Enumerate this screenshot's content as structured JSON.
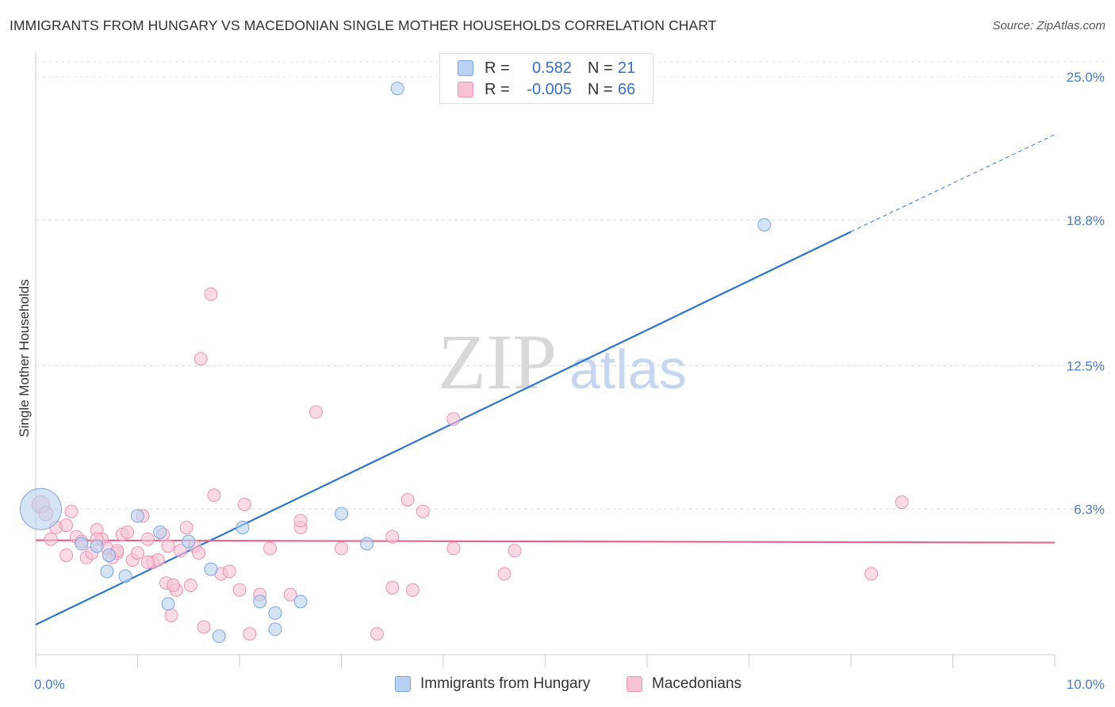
{
  "title": "IMMIGRANTS FROM HUNGARY VS MACEDONIAN SINGLE MOTHER HOUSEHOLDS CORRELATION CHART",
  "source": "Source: ZipAtlas.com",
  "watermark": {
    "zip": "ZIP",
    "atlas": "atlas"
  },
  "colors": {
    "blue_fill": "#b9d1f2",
    "blue_stroke": "#7aa6df",
    "blue_line": "#2f74d0",
    "pink_fill": "#f7c3d3",
    "pink_stroke": "#ec93b0",
    "pink_line": "#e36690",
    "tick_label": "#4a7cc7",
    "grid": "#dddddd"
  },
  "legend": {
    "rows": [
      {
        "r_label": "R =",
        "r_value": "0.582",
        "n_label": "N =",
        "n_value": "21"
      },
      {
        "r_label": "R =",
        "r_value": "-0.005",
        "n_label": "N =",
        "n_value": "66"
      }
    ]
  },
  "bottom_legend": {
    "series1": "Immigrants from Hungary",
    "series2": "Macedonians"
  },
  "chart_data": {
    "type": "scatter",
    "title": "IMMIGRANTS FROM HUNGARY VS MACEDONIAN SINGLE MOTHER HOUSEHOLDS CORRELATION CHART",
    "xlabel": "",
    "ylabel": "Single Mother Households",
    "xlim": [
      0,
      10
    ],
    "ylim": [
      0,
      25.0
    ],
    "x_tick_labels": [
      "0.0%",
      "10.0%"
    ],
    "y_ticks": [
      6.3,
      12.5,
      18.8,
      25.0
    ],
    "y_tick_labels": [
      "6.3%",
      "12.5%",
      "18.8%",
      "25.0%"
    ],
    "grid": true,
    "series": [
      {
        "name": "Immigrants from Hungary",
        "R": 0.582,
        "N": 21,
        "trend": {
          "x0": 0,
          "y0": 1.3,
          "x1": 8.0,
          "y1": 18.3,
          "dash_to_x": 10.0,
          "dash_to_y": 22.5
        },
        "points": [
          [
            0.05,
            6.3,
            26
          ],
          [
            0.45,
            4.8,
            8
          ],
          [
            0.6,
            4.7,
            8
          ],
          [
            0.7,
            3.6,
            8
          ],
          [
            0.72,
            4.3,
            8
          ],
          [
            0.88,
            3.4,
            8
          ],
          [
            1.0,
            6.0,
            8
          ],
          [
            1.22,
            5.3,
            8
          ],
          [
            1.3,
            2.2,
            8
          ],
          [
            1.5,
            4.9,
            8
          ],
          [
            1.72,
            3.7,
            8
          ],
          [
            1.8,
            0.8,
            8
          ],
          [
            2.03,
            5.5,
            8
          ],
          [
            2.2,
            2.3,
            8
          ],
          [
            2.35,
            1.8,
            8
          ],
          [
            2.35,
            1.1,
            8
          ],
          [
            2.6,
            2.3,
            8
          ],
          [
            3.0,
            6.1,
            8
          ],
          [
            3.25,
            4.8,
            8
          ],
          [
            3.55,
            24.5,
            8
          ],
          [
            7.15,
            18.6,
            8
          ]
        ]
      },
      {
        "name": "Macedonians",
        "R": -0.005,
        "N": 66,
        "trend": {
          "x0": 0,
          "y0": 4.95,
          "x1": 10.0,
          "y1": 4.85
        },
        "points": [
          [
            0.05,
            6.5,
            11
          ],
          [
            0.1,
            6.1,
            9
          ],
          [
            0.15,
            5.0,
            8
          ],
          [
            0.2,
            5.5,
            8
          ],
          [
            0.3,
            4.3,
            8
          ],
          [
            0.35,
            6.2,
            8
          ],
          [
            0.4,
            5.1,
            8
          ],
          [
            0.45,
            4.9,
            8
          ],
          [
            0.5,
            4.2,
            8
          ],
          [
            0.55,
            4.4,
            8
          ],
          [
            0.6,
            5.4,
            8
          ],
          [
            0.65,
            5.0,
            8
          ],
          [
            0.7,
            4.6,
            8
          ],
          [
            0.75,
            4.2,
            8
          ],
          [
            0.8,
            4.4,
            8
          ],
          [
            0.85,
            5.2,
            8
          ],
          [
            0.9,
            5.3,
            8
          ],
          [
            0.95,
            4.1,
            8
          ],
          [
            1.0,
            4.4,
            8
          ],
          [
            1.05,
            6.0,
            8
          ],
          [
            1.1,
            5.0,
            8
          ],
          [
            1.15,
            4.0,
            8
          ],
          [
            1.2,
            4.1,
            8
          ],
          [
            1.25,
            5.2,
            8
          ],
          [
            1.28,
            3.1,
            8
          ],
          [
            1.3,
            4.7,
            8
          ],
          [
            1.33,
            1.7,
            8
          ],
          [
            1.38,
            2.8,
            8
          ],
          [
            1.42,
            4.5,
            8
          ],
          [
            1.48,
            5.5,
            8
          ],
          [
            1.52,
            3.0,
            8
          ],
          [
            1.56,
            4.7,
            8
          ],
          [
            1.6,
            4.4,
            8
          ],
          [
            1.62,
            12.8,
            8
          ],
          [
            1.65,
            1.2,
            8
          ],
          [
            1.72,
            15.6,
            8
          ],
          [
            1.75,
            6.9,
            8
          ],
          [
            1.82,
            3.5,
            8
          ],
          [
            1.9,
            3.6,
            8
          ],
          [
            2.0,
            2.8,
            8
          ],
          [
            2.05,
            6.5,
            8
          ],
          [
            2.1,
            0.9,
            8
          ],
          [
            2.2,
            2.6,
            8
          ],
          [
            2.3,
            4.6,
            8
          ],
          [
            2.5,
            2.6,
            8
          ],
          [
            2.6,
            5.5,
            8
          ],
          [
            2.6,
            5.8,
            8
          ],
          [
            2.75,
            10.5,
            8
          ],
          [
            3.0,
            4.6,
            8
          ],
          [
            3.35,
            0.9,
            8
          ],
          [
            3.5,
            2.9,
            8
          ],
          [
            3.5,
            5.1,
            8
          ],
          [
            3.65,
            6.7,
            8
          ],
          [
            3.7,
            2.8,
            8
          ],
          [
            3.8,
            6.2,
            8
          ],
          [
            4.1,
            4.6,
            8
          ],
          [
            4.1,
            10.2,
            8
          ],
          [
            4.6,
            3.5,
            8
          ],
          [
            4.7,
            4.5,
            8
          ],
          [
            8.2,
            3.5,
            8
          ],
          [
            8.5,
            6.6,
            8
          ],
          [
            0.3,
            5.6,
            8
          ],
          [
            1.1,
            4.0,
            8
          ],
          [
            0.6,
            5.0,
            8
          ],
          [
            0.8,
            4.5,
            8
          ],
          [
            1.35,
            3.0,
            8
          ]
        ]
      }
    ]
  }
}
